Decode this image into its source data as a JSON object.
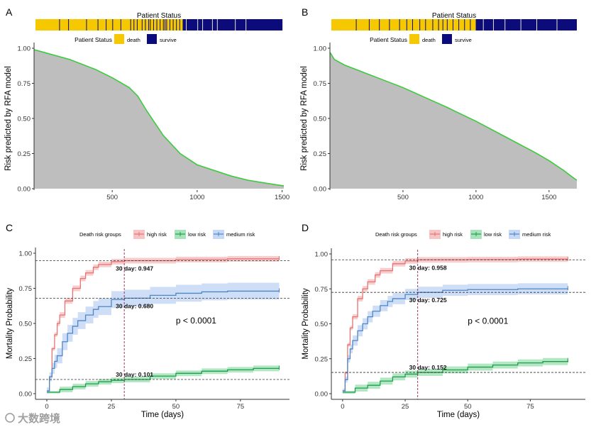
{
  "colors": {
    "death": "#F5C800",
    "survive": "#0B0B7C",
    "area": "#BEBEBE",
    "risk_line": "#3CCB3C",
    "high": "#E57373",
    "high_band": "#F6C4C4",
    "low": "#1E9E4A",
    "low_band": "#A6E3BA",
    "medium": "#4F86C6",
    "medium_band": "#C5D8F5",
    "ref": "#8B2252"
  },
  "watermark": "大数跨境",
  "chart_data": [
    {
      "panel": "A",
      "type": "area",
      "status_title": "Patient Status",
      "legend": {
        "title": "Patient Status",
        "items": [
          "death",
          "survive"
        ]
      },
      "ylabel": "Risk predicted by RFA model",
      "xlabel": "",
      "xlim": [
        40,
        1510
      ],
      "ylim": [
        0,
        1
      ],
      "xticks": [
        "500",
        "1000",
        "1500"
      ],
      "xtick_values": [
        500,
        1000,
        1500
      ],
      "yticks": [
        "0.00",
        "0.25",
        "0.50",
        "0.75",
        "1.00"
      ],
      "ytick_values": [
        0,
        0.25,
        0.5,
        0.75,
        1
      ],
      "x": [
        40,
        100,
        250,
        400,
        500,
        600,
        650,
        700,
        750,
        800,
        900,
        1000,
        1100,
        1200,
        1300,
        1400,
        1510
      ],
      "y": [
        0.99,
        0.97,
        0.92,
        0.85,
        0.79,
        0.72,
        0.66,
        0.56,
        0.47,
        0.38,
        0.25,
        0.17,
        0.13,
        0.09,
        0.06,
        0.04,
        0.02
      ],
      "status_n": 1510,
      "death_until": 900,
      "death_markers": [
        145,
        200,
        310,
        380,
        430,
        470,
        520,
        580,
        600,
        620,
        650,
        670,
        690,
        700,
        720,
        740,
        760,
        780,
        790,
        800,
        820,
        840,
        860,
        880
      ],
      "survive_markers": [
        920,
        990,
        1020,
        1080,
        1110,
        1220,
        1285,
        1510
      ]
    },
    {
      "panel": "B",
      "type": "area",
      "status_title": "Patient Status",
      "legend": {
        "title": "Patient Status",
        "items": [
          "death",
          "survive"
        ]
      },
      "ylabel": "Risk predicted by RFA model",
      "xlabel": "",
      "xlim": [
        0,
        1700
      ],
      "ylim": [
        0,
        1
      ],
      "xticks": [
        "500",
        "1000",
        "1500"
      ],
      "xtick_values": [
        500,
        1000,
        1500
      ],
      "yticks": [
        "0.00",
        "0.25",
        "0.50",
        "0.75",
        "1.00"
      ],
      "ytick_values": [
        0,
        0.25,
        0.5,
        0.75,
        1
      ],
      "x": [
        1,
        30,
        100,
        200,
        350,
        500,
        650,
        800,
        1000,
        1200,
        1400,
        1500,
        1600,
        1650,
        1690
      ],
      "y": [
        0.97,
        0.92,
        0.88,
        0.84,
        0.78,
        0.72,
        0.65,
        0.58,
        0.48,
        0.37,
        0.26,
        0.2,
        0.13,
        0.09,
        0.06
      ],
      "status_n": 1700,
      "death_until": 1000,
      "death_markers": [
        170,
        260,
        330,
        400,
        470,
        520,
        560,
        610,
        650,
        700,
        740,
        770,
        800,
        840,
        880,
        920,
        960
      ],
      "survive_markers": [
        1050,
        1120,
        1200,
        1310,
        1420,
        1560
      ]
    },
    {
      "panel": "C",
      "type": "line",
      "legend": {
        "title": "Death risk groups",
        "items": [
          "high risk",
          "low risk",
          "medium risk"
        ]
      },
      "ylabel": "Mortality Probability",
      "xlabel": "Time (days)",
      "xlim": [
        -4.4,
        94
      ],
      "ylim": [
        0,
        1
      ],
      "xticks": [
        "0",
        "25",
        "50",
        "75"
      ],
      "xtick_values": [
        0,
        25,
        50,
        75
      ],
      "yticks": [
        "0.00",
        "0.25",
        "0.50",
        "0.75",
        "1.00"
      ],
      "ytick_values": [
        0,
        0.25,
        0.5,
        0.75,
        1
      ],
      "pvalue": "p < 0.0001",
      "ref_day": 30,
      "series": [
        {
          "name": "high risk",
          "key": "high",
          "ci": 0.02,
          "x": [
            0,
            1,
            2,
            3,
            4,
            5,
            7,
            10,
            13,
            15,
            18,
            20,
            25,
            30,
            50,
            70,
            90
          ],
          "y": [
            0.02,
            0.12,
            0.32,
            0.42,
            0.5,
            0.56,
            0.66,
            0.75,
            0.82,
            0.86,
            0.9,
            0.92,
            0.94,
            0.947,
            0.955,
            0.96,
            0.965
          ],
          "annotation": "30 day: 0.947",
          "value30": 0.947
        },
        {
          "name": "low risk",
          "key": "low",
          "ci": 0.02,
          "x": [
            0,
            5,
            10,
            15,
            20,
            25,
            30,
            40,
            50,
            60,
            70,
            80,
            90
          ],
          "y": [
            0.01,
            0.03,
            0.05,
            0.07,
            0.085,
            0.095,
            0.101,
            0.125,
            0.145,
            0.16,
            0.17,
            0.18,
            0.185
          ],
          "annotation": "30 day: 0.101",
          "value30": 0.101
        },
        {
          "name": "medium risk",
          "key": "medium",
          "ci": 0.06,
          "x": [
            0,
            1,
            2,
            3,
            4,
            6,
            8,
            10,
            12,
            15,
            18,
            20,
            25,
            30,
            40,
            50,
            60,
            70,
            90
          ],
          "y": [
            0.02,
            0.12,
            0.18,
            0.23,
            0.27,
            0.37,
            0.43,
            0.48,
            0.52,
            0.56,
            0.6,
            0.62,
            0.67,
            0.68,
            0.7,
            0.715,
            0.725,
            0.73,
            0.735
          ],
          "annotation": "30 day: 0.680",
          "value30": 0.68
        }
      ]
    },
    {
      "panel": "D",
      "type": "line",
      "legend": {
        "title": "Death risk groups",
        "items": [
          "high risk",
          "low risk",
          "medium risk"
        ]
      },
      "ylabel": "Mortality Probability",
      "xlabel": "Time (days)",
      "xlim": [
        -4.5,
        97
      ],
      "ylim": [
        0,
        1
      ],
      "xticks": [
        "0",
        "25",
        "50",
        "75"
      ],
      "xtick_values": [
        0,
        25,
        50,
        75
      ],
      "yticks": [
        "0.00",
        "0.25",
        "0.50",
        "0.75",
        "1.00"
      ],
      "ytick_values": [
        0,
        0.25,
        0.5,
        0.75,
        1
      ],
      "pvalue": "p < 0.0001",
      "ref_day": 30,
      "series": [
        {
          "name": "high risk",
          "key": "high",
          "ci": 0.02,
          "x": [
            0,
            1,
            2,
            3,
            4,
            6,
            8,
            10,
            13,
            15,
            20,
            25,
            30,
            50,
            70,
            90
          ],
          "y": [
            0.02,
            0.15,
            0.35,
            0.47,
            0.55,
            0.68,
            0.75,
            0.8,
            0.85,
            0.88,
            0.93,
            0.95,
            0.958,
            0.96,
            0.963,
            0.965
          ],
          "annotation": "30 day: 0.958",
          "value30": 0.958
        },
        {
          "name": "low risk",
          "key": "low",
          "ci": 0.025,
          "x": [
            0,
            5,
            10,
            15,
            20,
            25,
            30,
            40,
            50,
            60,
            70,
            80,
            90
          ],
          "y": [
            0.01,
            0.04,
            0.06,
            0.09,
            0.12,
            0.14,
            0.152,
            0.17,
            0.19,
            0.205,
            0.22,
            0.23,
            0.24
          ],
          "annotation": "30 day: 0.152",
          "value30": 0.152
        },
        {
          "name": "medium risk",
          "key": "medium",
          "ci": 0.04,
          "x": [
            0,
            1,
            2,
            3,
            4,
            6,
            8,
            10,
            12,
            15,
            18,
            20,
            25,
            30,
            40,
            50,
            70,
            90
          ],
          "y": [
            0.02,
            0.1,
            0.25,
            0.32,
            0.38,
            0.45,
            0.5,
            0.55,
            0.59,
            0.63,
            0.66,
            0.68,
            0.71,
            0.725,
            0.74,
            0.745,
            0.75,
            0.755
          ],
          "annotation": "30 day: 0.725",
          "value30": 0.725
        }
      ]
    }
  ]
}
